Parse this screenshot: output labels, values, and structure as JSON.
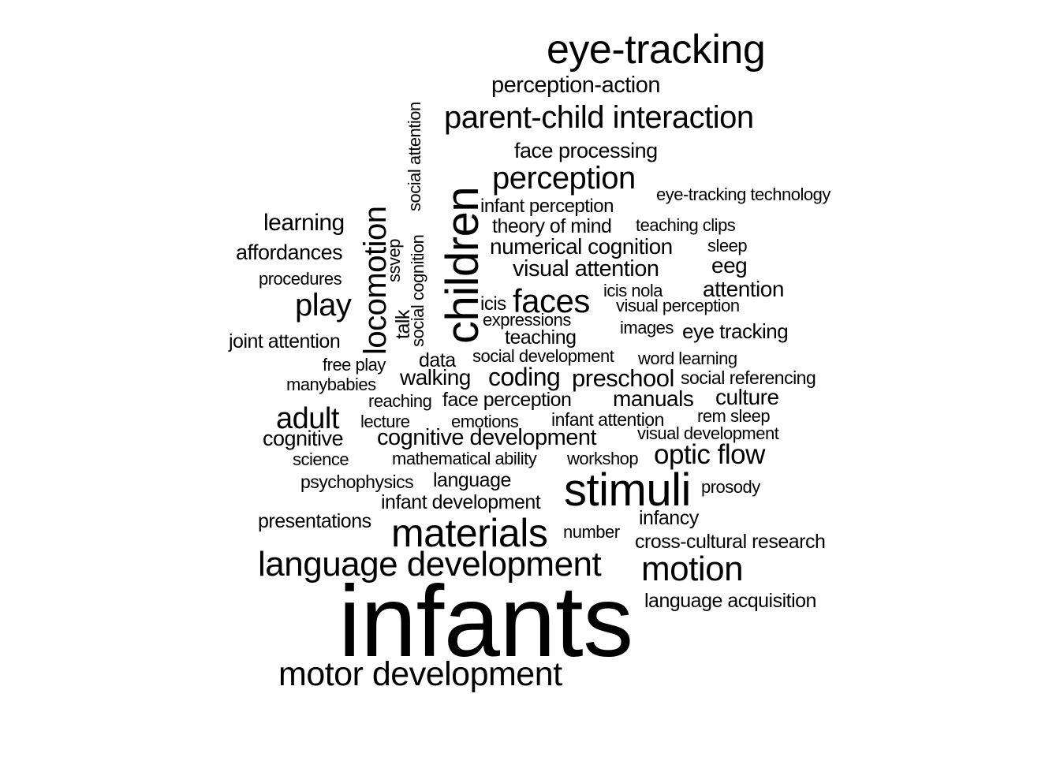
{
  "words": {
    "eye_tracking": "eye-tracking",
    "perception_action": "perception-action",
    "parent_child_interaction": "parent-child interaction",
    "face_processing": "face processing",
    "perception": "perception",
    "eye_tracking_technology": "eye-tracking technology",
    "infant_perception": "infant perception",
    "theory_of_mind": "theory of mind",
    "teaching_clips": "teaching clips",
    "numerical_cognition": "numerical cognition",
    "sleep": "sleep",
    "eeg": "eeg",
    "visual_attention": "visual attention",
    "attention": "attention",
    "icis_nola": "icis nola",
    "faces": "faces",
    "icis": "icis",
    "visual_perception": "visual perception",
    "expressions": "expressions",
    "images": "images",
    "eye_tracking_2": "eye tracking",
    "teaching": "teaching",
    "social_development": "social development",
    "word_learning": "word learning",
    "learning": "learning",
    "affordances": "affordances",
    "procedures": "procedures",
    "play": "play",
    "joint_attention": "joint attention",
    "free_play": "free play",
    "data": "data",
    "manybabies": "manybabies",
    "walking": "walking",
    "coding": "coding",
    "preschool": "preschool",
    "social_referencing": "social referencing",
    "reaching": "reaching",
    "face_perception": "face perception",
    "manuals": "manuals",
    "culture": "culture",
    "adult": "adult",
    "lecture": "lecture",
    "emotions": "emotions",
    "infant_attention": "infant attention",
    "rem_sleep": "rem sleep",
    "cognitive": "cognitive",
    "cognitive_development": "cognitive development",
    "visual_development": "visual development",
    "science": "science",
    "mathematical_ability": "mathematical ability",
    "workshop": "workshop",
    "optic_flow": "optic flow",
    "psychophysics": "psychophysics",
    "language": "language",
    "stimuli": "stimuli",
    "prosody": "prosody",
    "infant_development": "infant development",
    "presentations": "presentations",
    "infancy": "infancy",
    "materials": "materials",
    "number": "number",
    "cross_cultural_research": "cross-cultural research",
    "language_development": "language development",
    "motion": "motion",
    "language_acquisition": "language acquisition",
    "infants": "infants",
    "motor_development": "motor development",
    "children": "children",
    "locomotion": "locomotion",
    "social_attention": "social attention",
    "social_cognition": "social cognition",
    "ssvep": "ssvep",
    "talk": "talk"
  }
}
